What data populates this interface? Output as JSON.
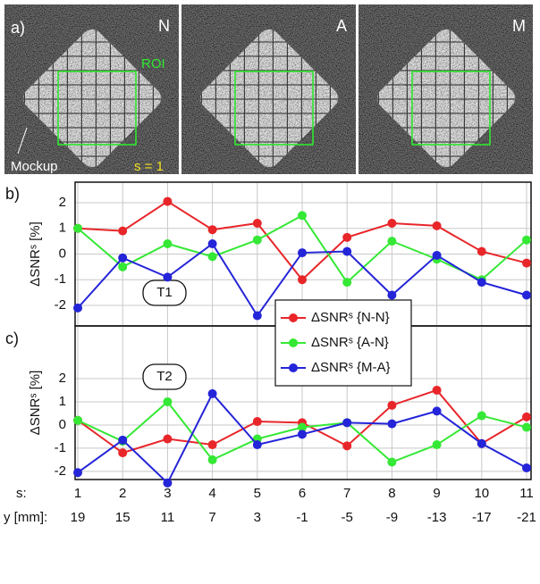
{
  "panel_a": {
    "label": "a)",
    "images": [
      {
        "label": "N"
      },
      {
        "label": "A"
      },
      {
        "label": "M"
      }
    ],
    "roi_label": "ROI",
    "mockup_label": "Mockup",
    "slice_label": "s = 1"
  },
  "chart_data": [
    {
      "type": "line",
      "panel_label": "b)",
      "y_label": "ΔSNRˢ [%]",
      "annotation": "T1",
      "x": [
        1,
        2,
        3,
        4,
        5,
        6,
        7,
        8,
        9,
        10,
        11
      ],
      "xlim": [
        0.94,
        11.1
      ],
      "xticks": [
        1,
        2,
        3,
        4,
        5,
        6,
        7,
        8,
        9,
        10,
        11
      ],
      "ylim": [
        -2.8,
        2.8
      ],
      "yticks": [
        -2,
        -1,
        0,
        1,
        2
      ],
      "grid": true,
      "series": [
        {
          "color": "#e8262a",
          "values": [
            1.0,
            0.9,
            2.05,
            0.95,
            1.2,
            -1.0,
            0.65,
            1.2,
            1.1,
            0.1,
            -0.35
          ]
        },
        {
          "color": "#35e835",
          "values": [
            1.0,
            -0.5,
            0.4,
            -0.1,
            0.55,
            1.5,
            -1.1,
            0.5,
            -0.2,
            -1.0,
            0.55
          ]
        },
        {
          "color": "#2424d8",
          "values": [
            -2.1,
            -0.15,
            -0.9,
            0.4,
            -2.4,
            0.05,
            0.1,
            -1.6,
            -0.05,
            -1.1,
            -1.6
          ]
        }
      ]
    },
    {
      "type": "line",
      "panel_label": "c)",
      "y_label": "ΔSNRˢ [%]",
      "annotation": "T2",
      "x": [
        1,
        2,
        3,
        4,
        5,
        6,
        7,
        8,
        9,
        10,
        11
      ],
      "xlim": [
        0.94,
        11.1
      ],
      "xticks": [
        1,
        2,
        3,
        4,
        5,
        6,
        7,
        8,
        9,
        10,
        11
      ],
      "ylim": [
        -2.35,
        4.27
      ],
      "yticks": [
        -2,
        -1,
        0,
        1,
        2
      ],
      "grid": true,
      "legend": "upper center",
      "x_label": "s:",
      "x2_label": "y [mm]:",
      "x2_categories": [
        19,
        15,
        11,
        7,
        3,
        -1,
        -5,
        -9,
        -13,
        -17,
        -21
      ],
      "series": [
        {
          "name": "ΔSNRˢ {N-N}",
          "color": "#e8262a",
          "values": [
            0.2,
            -1.2,
            -0.6,
            -0.85,
            0.15,
            0.1,
            -0.9,
            0.85,
            1.5,
            -0.8,
            0.35
          ]
        },
        {
          "name": "ΔSNRˢ {A-N}",
          "color": "#35e835",
          "values": [
            0.2,
            -0.7,
            1.0,
            -1.5,
            -0.6,
            -0.1,
            0.1,
            -1.6,
            -0.85,
            0.4,
            -0.1
          ]
        },
        {
          "name": "ΔSNRˢ {M-A}",
          "color": "#2424d8",
          "values": [
            -2.05,
            -0.65,
            -2.5,
            1.35,
            -0.85,
            -0.4,
            0.1,
            0.05,
            0.6,
            -0.8,
            -1.85
          ]
        }
      ]
    }
  ]
}
